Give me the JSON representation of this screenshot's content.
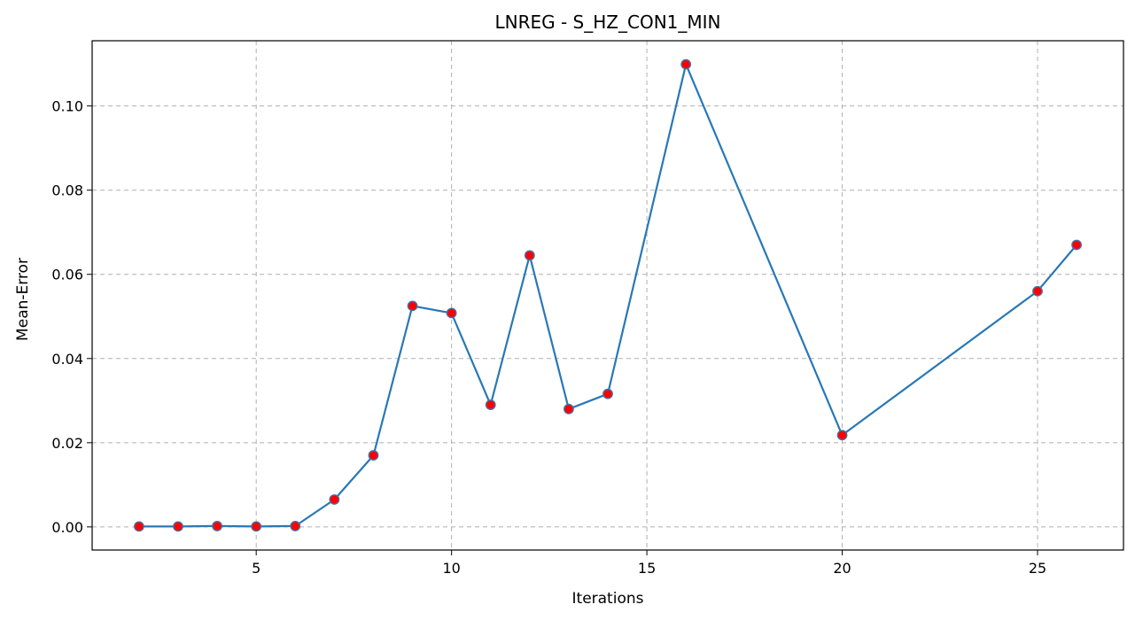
{
  "chart_data": {
    "type": "line",
    "title": "LNREG - S_HZ_CON1_MIN",
    "xlabel": "Iterations",
    "ylabel": "Mean-Error",
    "xlim": [
      0.8,
      27.2
    ],
    "ylim": [
      -0.0055,
      0.1155
    ],
    "x_ticks": [
      5,
      10,
      15,
      20,
      25
    ],
    "x_tick_labels": [
      "5",
      "10",
      "15",
      "20",
      "25"
    ],
    "y_ticks": [
      0.0,
      0.02,
      0.04,
      0.06,
      0.08,
      0.1
    ],
    "y_tick_labels": [
      "0.00",
      "0.02",
      "0.04",
      "0.06",
      "0.08",
      "0.10"
    ],
    "grid": true,
    "series": [
      {
        "x": [
          2,
          3,
          4,
          5,
          6,
          7,
          8,
          9,
          10,
          11,
          12,
          13,
          14,
          16,
          20,
          25,
          26
        ],
        "y": [
          0.0001,
          0.0001,
          0.0002,
          0.0001,
          0.0002,
          0.0065,
          0.017,
          0.0525,
          0.0508,
          0.029,
          0.0645,
          0.028,
          0.0316,
          0.1099,
          0.0218,
          0.056,
          0.067
        ],
        "line_color": "#2878b5",
        "marker_face": "#ff0000",
        "marker_edge": "#4a6fa5"
      }
    ]
  }
}
